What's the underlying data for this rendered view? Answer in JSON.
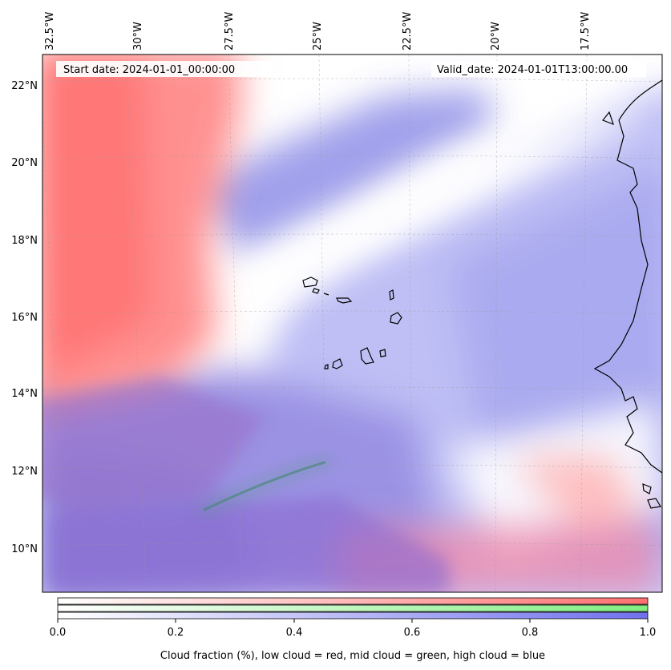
{
  "map": {
    "start_date": "Start date: 2024-01-01_00:00:00",
    "valid_date": "Valid_date: 2024-01-01T13:00:00.00",
    "lon_labels": [
      "32.5°W",
      "30°W",
      "27.5°W",
      "25°W",
      "22.5°W",
      "20°W",
      "17.5°W"
    ],
    "lat_labels": [
      "22°N",
      "20°N",
      "18°N",
      "16°N",
      "14°N",
      "12°N",
      "10°N"
    ]
  },
  "colorbar": {
    "ticks": [
      "0.0",
      "0.2",
      "0.4",
      "0.6",
      "0.8",
      "1.0"
    ],
    "label": "Cloud fraction (%), low cloud = red, mid cloud = green, high cloud = blue",
    "colors": {
      "low": "#ff7070",
      "mid": "#80ee80",
      "high": "#7070ee"
    }
  }
}
